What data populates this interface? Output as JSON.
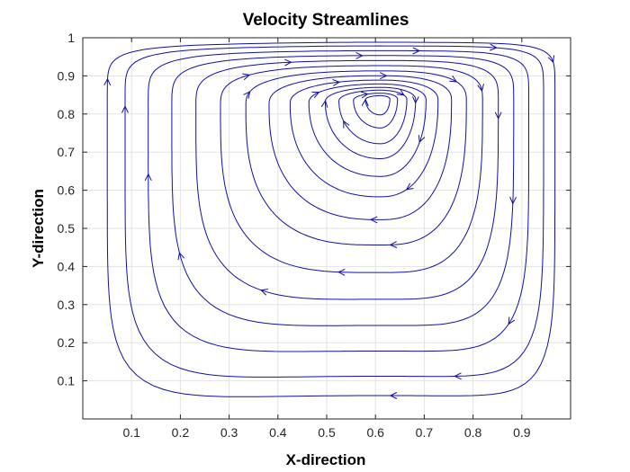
{
  "chart_data": {
    "type": "streamline",
    "title": "Velocity Streamlines",
    "xlabel": "X-direction",
    "ylabel": "Y-direction",
    "xlim": [
      0,
      1
    ],
    "ylim": [
      0,
      1
    ],
    "xticks": [
      0.1,
      0.2,
      0.3,
      0.4,
      0.5,
      0.6,
      0.7,
      0.8,
      0.9
    ],
    "xtick_labels": [
      "0.1",
      "0.2",
      "0.3",
      "0.4",
      "0.5",
      "0.6",
      "0.7",
      "0.8",
      "0.9"
    ],
    "yticks": [
      0.1,
      0.2,
      0.3,
      0.4,
      0.5,
      0.6,
      0.7,
      0.8,
      0.9,
      1
    ],
    "ytick_labels": [
      "0.1",
      "0.2",
      "0.3",
      "0.4",
      "0.5",
      "0.6",
      "0.7",
      "0.8",
      "0.9",
      "1"
    ],
    "grid": true,
    "line_color": "#1010aa",
    "flow": "clockwise",
    "vortex_center": [
      0.61,
      0.84
    ],
    "streamline_levels": [
      0.03,
      0.06,
      0.1,
      0.14,
      0.19,
      0.25,
      0.32,
      0.4,
      0.49,
      0.58,
      0.67,
      0.76,
      0.85,
      0.92
    ]
  }
}
